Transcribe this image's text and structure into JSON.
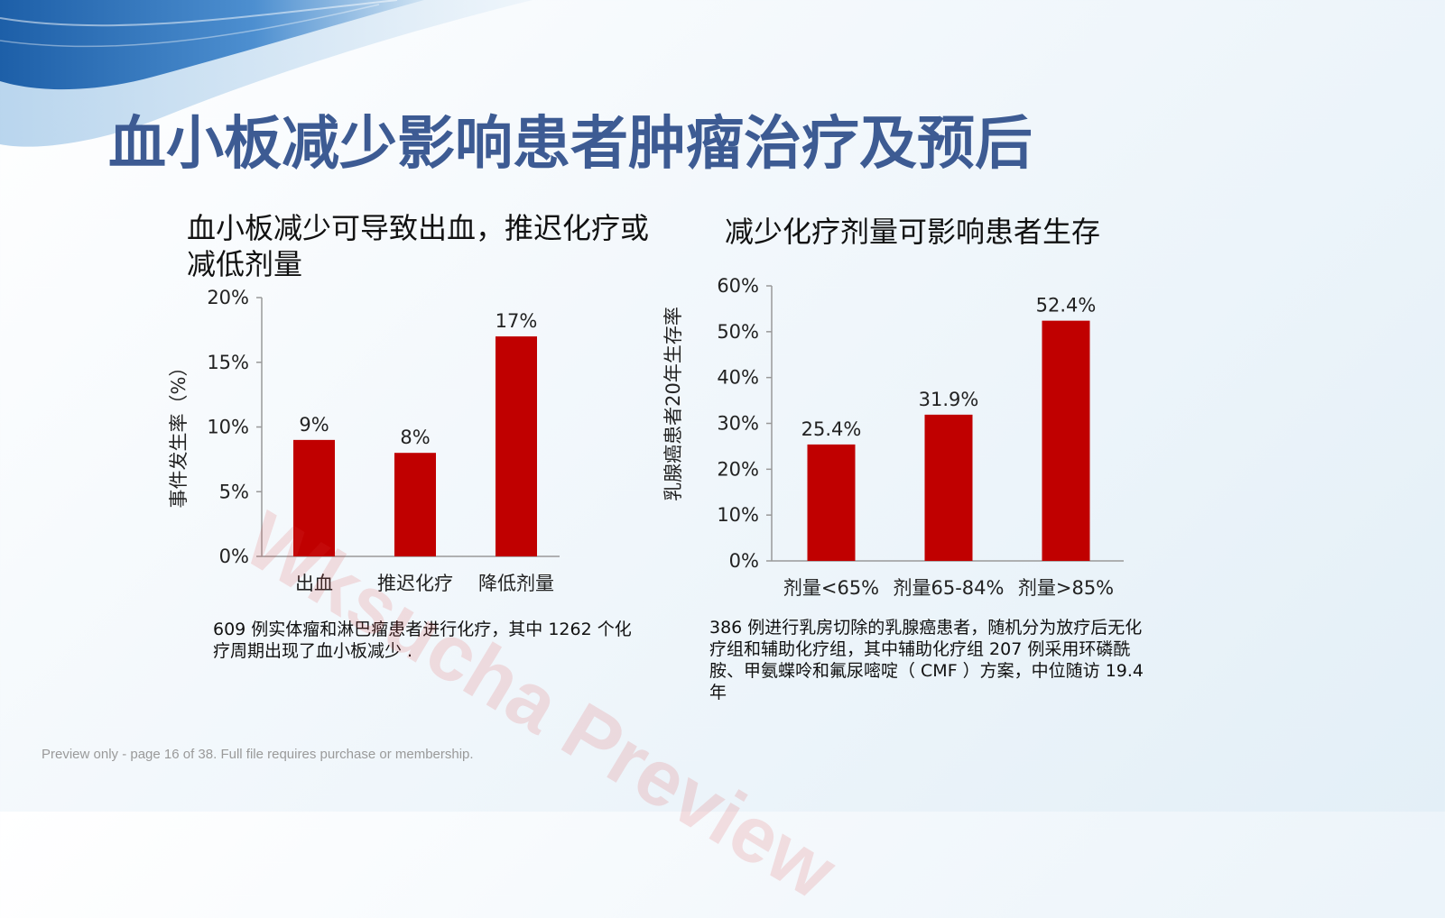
{
  "slide": {
    "title": "血小板减少影响患者肿瘤治疗及预后",
    "left_heading": "血小板减少可导致出血，推迟化疗或减低剂量",
    "right_heading": "减少化疗剂量可影响患者生存",
    "left_note": "609 例实体瘤和淋巴瘤患者进行化疗，其中 1262 个化疗周期出现了血小板减少 .",
    "right_note": "386 例进行乳房切除的乳腺癌患者，随机分为放疗后无化疗组和辅助化疗组，其中辅助化疗组 207 例采用环磷酰胺、甲氨蝶呤和氟尿嘧啶（ CMF ）方案，中位随访 19.4 年",
    "footer": "Preview only - page 16 of 38. Full file requires purchase or membership.",
    "watermark": "Wksucha Preview"
  },
  "colors": {
    "title": "#3d5b93",
    "bar": "#c00000",
    "axis": "#999999"
  },
  "chart_data": [
    {
      "type": "bar",
      "categories": [
        "出血",
        "推迟化疗",
        "降低剂量"
      ],
      "values": [
        9,
        8,
        17
      ],
      "data_labels": [
        "9%",
        "8%",
        "17%"
      ],
      "ylabel": "事件发生率（%）",
      "ylim": [
        0,
        20
      ],
      "yticks": [
        0,
        5,
        10,
        15,
        20
      ],
      "ytick_labels": [
        "0%",
        "5%",
        "10%",
        "15%",
        "20%"
      ],
      "grid": false,
      "legend": "none"
    },
    {
      "type": "bar",
      "categories": [
        "剂量<65%",
        "剂量65-84%",
        "剂量>85%"
      ],
      "values": [
        25.4,
        31.9,
        52.4
      ],
      "data_labels": [
        "25.4%",
        "31.9%",
        "52.4%"
      ],
      "ylabel": "乳腺癌患者20年生存率",
      "ylim": [
        0,
        60
      ],
      "yticks": [
        0,
        10,
        20,
        30,
        40,
        50,
        60
      ],
      "ytick_labels": [
        "0%",
        "10%",
        "20%",
        "30%",
        "40%",
        "50%",
        "60%"
      ],
      "grid": false,
      "legend": "none"
    }
  ]
}
